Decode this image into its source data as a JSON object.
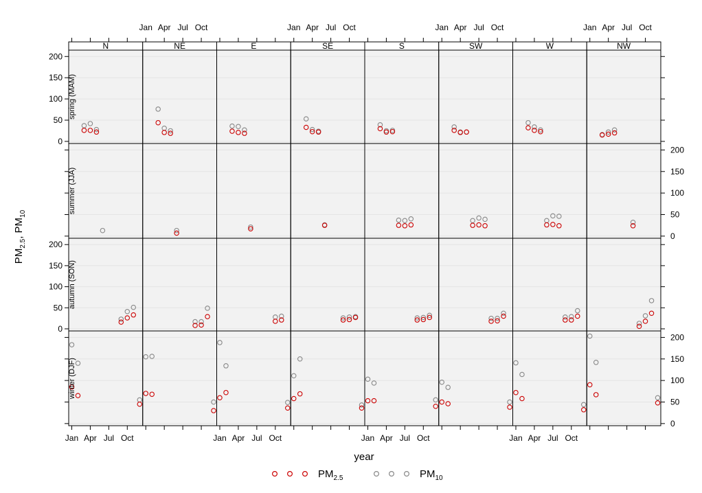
{
  "chart_data": {
    "type": "scatter",
    "layout": "trellis",
    "xlabel": "year",
    "ylabel": {
      "base": "PM",
      "sub1": "2.5",
      "sep": ", PM",
      "sub2": "10"
    },
    "x_ticks": [
      "Jan",
      "Apr",
      "Jul",
      "Oct"
    ],
    "x_tick_months": [
      1,
      4,
      7,
      10
    ],
    "xlim": [
      0.5,
      12.5
    ],
    "ylim": [
      -5,
      215
    ],
    "y_ticks": [
      0,
      50,
      100,
      150,
      200
    ],
    "grid": true,
    "legend_position": "bottom",
    "colors": {
      "pm25": "#cc0000",
      "pm10": "#888888",
      "panel_bg": "#f2f2f2",
      "grid": "#e4e4e4"
    },
    "columns": [
      "N",
      "NE",
      "E",
      "SE",
      "S",
      "SW",
      "W",
      "NW"
    ],
    "rows": [
      "spring (MAM)",
      "summer (JJA)",
      "autumn (SON)",
      "winter (DJF)"
    ],
    "series": [
      {
        "key": "pm25",
        "legend_base": "PM",
        "legend_sub": "2.5"
      },
      {
        "key": "pm10",
        "legend_base": "PM",
        "legend_sub": "10"
      }
    ],
    "points": {
      "spring (MAM)": {
        "N": {
          "pm25": [
            [
              3,
              26
            ],
            [
              4,
              26
            ],
            [
              5,
              22
            ]
          ],
          "pm10": [
            [
              3,
              37
            ],
            [
              4,
              42
            ],
            [
              5,
              28
            ]
          ]
        },
        "NE": {
          "pm25": [
            [
              3,
              44
            ],
            [
              4,
              21
            ],
            [
              5,
              19
            ]
          ],
          "pm10": [
            [
              3,
              76
            ],
            [
              4,
              31
            ],
            [
              5,
              25
            ]
          ]
        },
        "E": {
          "pm25": [
            [
              3,
              24
            ],
            [
              4,
              21
            ],
            [
              5,
              19
            ]
          ],
          "pm10": [
            [
              3,
              36
            ],
            [
              4,
              35
            ],
            [
              5,
              27
            ]
          ]
        },
        "SE": {
          "pm25": [
            [
              3,
              33
            ],
            [
              4,
              23
            ],
            [
              5,
              22
            ]
          ],
          "pm10": [
            [
              3,
              53
            ],
            [
              4,
              28
            ],
            [
              5,
              24
            ]
          ]
        },
        "S": {
          "pm25": [
            [
              3,
              30
            ],
            [
              4,
              22
            ],
            [
              5,
              23
            ]
          ],
          "pm10": [
            [
              3,
              39
            ],
            [
              4,
              25
            ],
            [
              5,
              26
            ]
          ]
        },
        "SW": {
          "pm25": [
            [
              3,
              26
            ],
            [
              4,
              21
            ],
            [
              5,
              22
            ]
          ],
          "pm10": [
            [
              3,
              34
            ],
            [
              4,
              22
            ],
            [
              5,
              22
            ]
          ]
        },
        "W": {
          "pm25": [
            [
              3,
              32
            ],
            [
              4,
              26
            ],
            [
              5,
              23
            ]
          ],
          "pm10": [
            [
              3,
              44
            ],
            [
              4,
              34
            ],
            [
              5,
              27
            ]
          ]
        },
        "NW": {
          "pm25": [
            [
              3,
              15
            ],
            [
              4,
              17
            ],
            [
              5,
              20
            ]
          ],
          "pm10": [
            [
              3,
              16
            ],
            [
              4,
              22
            ],
            [
              5,
              27
            ]
          ]
        }
      },
      "summer (JJA)": {
        "N": {
          "pm25": [],
          "pm10": [
            [
              6,
              13
            ]
          ]
        },
        "NE": {
          "pm25": [
            [
              6,
              7
            ]
          ],
          "pm10": [
            [
              6,
              13
            ]
          ]
        },
        "E": {
          "pm25": [
            [
              6,
              17
            ]
          ],
          "pm10": [
            [
              6,
              21
            ]
          ]
        },
        "SE": {
          "pm25": [
            [
              6,
              25
            ]
          ],
          "pm10": [
            [
              6,
              26
            ]
          ]
        },
        "S": {
          "pm25": [
            [
              6,
              25
            ],
            [
              7,
              24
            ],
            [
              8,
              26
            ]
          ],
          "pm10": [
            [
              6,
              37
            ],
            [
              7,
              36
            ],
            [
              8,
              40
            ]
          ]
        },
        "SW": {
          "pm25": [
            [
              6,
              25
            ],
            [
              7,
              26
            ],
            [
              8,
              24
            ]
          ],
          "pm10": [
            [
              6,
              36
            ],
            [
              7,
              42
            ],
            [
              8,
              39
            ]
          ]
        },
        "W": {
          "pm25": [
            [
              6,
              26
            ],
            [
              7,
              27
            ],
            [
              8,
              24
            ]
          ],
          "pm10": [
            [
              6,
              36
            ],
            [
              7,
              47
            ],
            [
              8,
              46
            ]
          ]
        },
        "NW": {
          "pm25": [
            [
              8,
              24
            ]
          ],
          "pm10": [
            [
              8,
              32
            ]
          ]
        }
      },
      "autumn (SON)": {
        "N": {
          "pm25": [
            [
              9,
              16
            ],
            [
              10,
              26
            ],
            [
              11,
              33
            ]
          ],
          "pm10": [
            [
              9,
              23
            ],
            [
              10,
              41
            ],
            [
              11,
              51
            ]
          ]
        },
        "NE": {
          "pm25": [
            [
              9,
              8
            ],
            [
              10,
              9
            ],
            [
              11,
              29
            ]
          ],
          "pm10": [
            [
              9,
              17
            ],
            [
              10,
              17
            ],
            [
              11,
              49
            ]
          ]
        },
        "E": {
          "pm25": [
            [
              10,
              18
            ],
            [
              11,
              21
            ]
          ],
          "pm10": [
            [
              10,
              28
            ],
            [
              11,
              30
            ]
          ]
        },
        "SE": {
          "pm25": [
            [
              9,
              21
            ],
            [
              10,
              22
            ],
            [
              11,
              27
            ]
          ],
          "pm10": [
            [
              9,
              26
            ],
            [
              10,
              28
            ],
            [
              11,
              29
            ]
          ]
        },
        "S": {
          "pm25": [
            [
              9,
              21
            ],
            [
              10,
              22
            ],
            [
              11,
              27
            ]
          ],
          "pm10": [
            [
              9,
              26
            ],
            [
              10,
              27
            ],
            [
              11,
              32
            ]
          ]
        },
        "SW": {
          "pm25": [
            [
              9,
              18
            ],
            [
              10,
              19
            ],
            [
              11,
              30
            ]
          ],
          "pm10": [
            [
              9,
              25
            ],
            [
              10,
              25
            ],
            [
              11,
              37
            ]
          ]
        },
        "W": {
          "pm25": [
            [
              9,
              21
            ],
            [
              10,
              21
            ],
            [
              11,
              30
            ]
          ],
          "pm10": [
            [
              9,
              28
            ],
            [
              10,
              29
            ],
            [
              11,
              43
            ]
          ]
        },
        "NW": {
          "pm25": [
            [
              9,
              6
            ],
            [
              10,
              18
            ],
            [
              11,
              37
            ]
          ],
          "pm10": [
            [
              9,
              13
            ],
            [
              10,
              31
            ],
            [
              11,
              67
            ]
          ]
        }
      },
      "winter (DJF)": {
        "N": {
          "pm25": [
            [
              1,
              85
            ],
            [
              2,
              65
            ],
            [
              12,
              45
            ]
          ],
          "pm10": [
            [
              1,
              183
            ],
            [
              2,
              140
            ],
            [
              12,
              55
            ]
          ]
        },
        "NE": {
          "pm25": [
            [
              1,
              70
            ],
            [
              2,
              68
            ],
            [
              12,
              30
            ]
          ],
          "pm10": [
            [
              1,
              155
            ],
            [
              2,
              156
            ],
            [
              12,
              50
            ]
          ]
        },
        "E": {
          "pm25": [
            [
              1,
              60
            ],
            [
              2,
              72
            ],
            [
              12,
              36
            ]
          ],
          "pm10": [
            [
              1,
              188
            ],
            [
              2,
              134
            ],
            [
              12,
              49
            ]
          ]
        },
        "SE": {
          "pm25": [
            [
              1,
              58
            ],
            [
              2,
              69
            ],
            [
              12,
              36
            ]
          ],
          "pm10": [
            [
              1,
              111
            ],
            [
              2,
              150
            ],
            [
              12,
              43
            ]
          ]
        },
        "S": {
          "pm25": [
            [
              1,
              53
            ],
            [
              2,
              53
            ],
            [
              12,
              40
            ]
          ],
          "pm10": [
            [
              1,
              103
            ],
            [
              2,
              94
            ],
            [
              12,
              55
            ]
          ]
        },
        "SW": {
          "pm25": [
            [
              1,
              50
            ],
            [
              2,
              46
            ],
            [
              12,
              38
            ]
          ],
          "pm10": [
            [
              1,
              96
            ],
            [
              2,
              84
            ],
            [
              12,
              50
            ]
          ]
        },
        "W": {
          "pm25": [
            [
              1,
              72
            ],
            [
              2,
              58
            ],
            [
              12,
              32
            ]
          ],
          "pm10": [
            [
              1,
              141
            ],
            [
              2,
              114
            ],
            [
              12,
              44
            ]
          ]
        },
        "NW": {
          "pm25": [
            [
              1,
              90
            ],
            [
              2,
              67
            ],
            [
              12,
              48
            ]
          ],
          "pm10": [
            [
              1,
              203
            ],
            [
              2,
              142
            ],
            [
              12,
              60
            ]
          ]
        }
      }
    }
  }
}
